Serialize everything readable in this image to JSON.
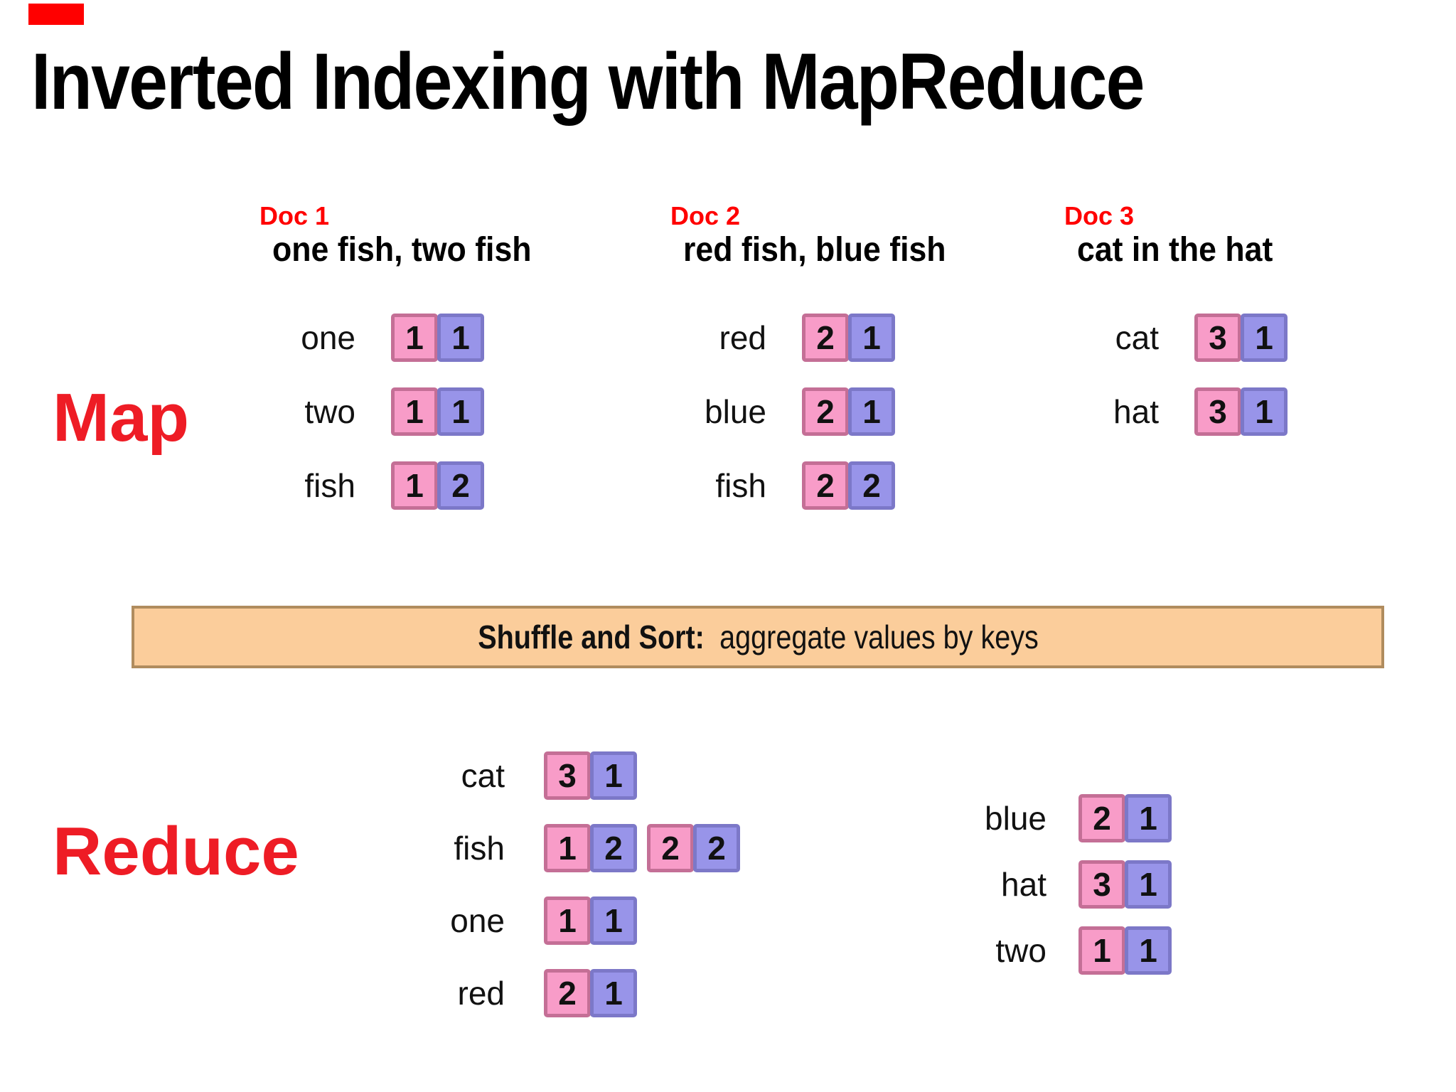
{
  "title": "Inverted Indexing with MapReduce",
  "colors": {
    "label_red": "#ff0000",
    "phase_red": "#ee1c25",
    "pink_fill": "#f89cc8",
    "pink_border": "#c46f96",
    "purple_fill": "#9894e9",
    "purple_border": "#7c78c8",
    "banner_fill": "#fbcd9b",
    "banner_border": "#b08c5e",
    "corner_marker": "#ff0000"
  },
  "map": {
    "label": "Map",
    "docs": [
      {
        "doc_label": "Doc 1",
        "doc_title": "one fish, two fish",
        "rows": [
          {
            "word": "one",
            "docid": "1",
            "count": "1"
          },
          {
            "word": "two",
            "docid": "1",
            "count": "1"
          },
          {
            "word": "fish",
            "docid": "1",
            "count": "2"
          }
        ]
      },
      {
        "doc_label": "Doc 2",
        "doc_title": "red fish, blue fish",
        "rows": [
          {
            "word": "red",
            "docid": "2",
            "count": "1"
          },
          {
            "word": "blue",
            "docid": "2",
            "count": "1"
          },
          {
            "word": "fish",
            "docid": "2",
            "count": "2"
          }
        ]
      },
      {
        "doc_label": "Doc 3",
        "doc_title": "cat in the hat",
        "rows": [
          {
            "word": "cat",
            "docid": "3",
            "count": "1"
          },
          {
            "word": "hat",
            "docid": "3",
            "count": "1"
          }
        ]
      }
    ]
  },
  "shuffle": {
    "label_bold": "Shuffle and Sort:",
    "label_rest": "aggregate values by keys"
  },
  "reduce": {
    "label": "Reduce",
    "left_rows": [
      {
        "word": "cat",
        "pairs": [
          {
            "docid": "3",
            "count": "1"
          }
        ]
      },
      {
        "word": "fish",
        "pairs": [
          {
            "docid": "1",
            "count": "2"
          },
          {
            "docid": "2",
            "count": "2"
          }
        ]
      },
      {
        "word": "one",
        "pairs": [
          {
            "docid": "1",
            "count": "1"
          }
        ]
      },
      {
        "word": "red",
        "pairs": [
          {
            "docid": "2",
            "count": "1"
          }
        ]
      }
    ],
    "right_rows": [
      {
        "word": "blue",
        "pairs": [
          {
            "docid": "2",
            "count": "1"
          }
        ]
      },
      {
        "word": "hat",
        "pairs": [
          {
            "docid": "3",
            "count": "1"
          }
        ]
      },
      {
        "word": "two",
        "pairs": [
          {
            "docid": "1",
            "count": "1"
          }
        ]
      }
    ]
  }
}
